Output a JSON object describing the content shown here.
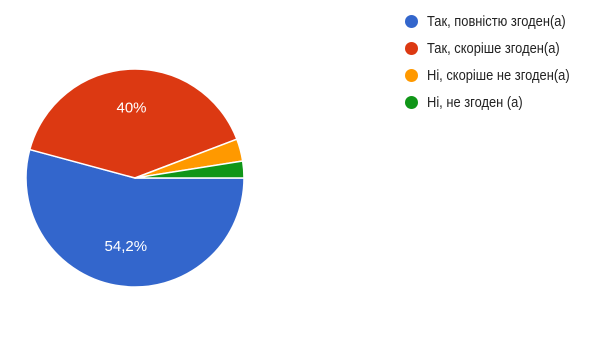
{
  "chart_data": {
    "type": "pie",
    "title": "",
    "slices": [
      {
        "name": "Так, повністю згоден(а)",
        "value": 54.2,
        "color": "#3366cc",
        "label": "54,2%"
      },
      {
        "name": "Так, скоріше згоден(а)",
        "value": 40.0,
        "color": "#dc3912",
        "label": "40%"
      },
      {
        "name": "Ні, скоріше не згоден(а)",
        "value": 3.3,
        "color": "#ff9900",
        "label": ""
      },
      {
        "name": "Ні, не згоден (а)",
        "value": 2.5,
        "color": "#109618",
        "label": ""
      }
    ],
    "legend_position": "right"
  },
  "legend": {
    "items": [
      {
        "label": "Так, повністю згоден(а)",
        "color": "#3366cc"
      },
      {
        "label": "Так, скоріше згоден(а)",
        "color": "#dc3912"
      },
      {
        "label": "Ні, скоріше не згоден(а)",
        "color": "#ff9900"
      },
      {
        "label": "Ні, не згоден (а)",
        "color": "#109618"
      }
    ]
  }
}
